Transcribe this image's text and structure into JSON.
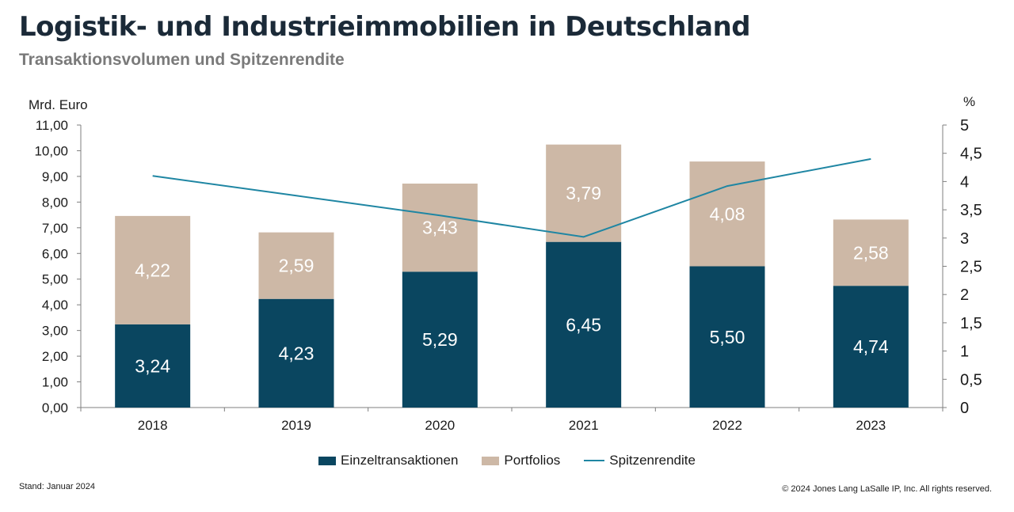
{
  "title": "Logistik- und Industrieimmobilien in Deutschland",
  "subtitle": "Transaktionsvolumen und Spitzenrendite",
  "footer": {
    "stand": "Stand: Januar 2024",
    "copyright": "© 2024 Jones Lang LaSalle IP, Inc. All rights reserved."
  },
  "colors": {
    "einzel": "#0a4660",
    "portfolio": "#cdb8a6",
    "line": "#1f86a3",
    "axis": "#7f7f7f"
  },
  "chart_data": {
    "type": "bar",
    "stacked": true,
    "categories": [
      "2018",
      "2019",
      "2020",
      "2021",
      "2022",
      "2023"
    ],
    "ylabel": "Mrd. Euro",
    "y2label": "%",
    "ylim": [
      0,
      11
    ],
    "y2lim": [
      0,
      5
    ],
    "yticks": [
      "0,00",
      "1,00",
      "2,00",
      "3,00",
      "4,00",
      "5,00",
      "6,00",
      "7,00",
      "8,00",
      "9,00",
      "10,00",
      "11,00"
    ],
    "y2ticks": [
      "0",
      "0,5",
      "1",
      "1,5",
      "2",
      "2,5",
      "3",
      "3,5",
      "4",
      "4,5",
      "5"
    ],
    "series": [
      {
        "name": "Einzeltransaktionen",
        "type": "bar",
        "axis": "left",
        "values": [
          3.24,
          4.23,
          5.29,
          6.45,
          5.5,
          4.74
        ],
        "labels": [
          "3,24",
          "4,23",
          "5,29",
          "6,45",
          "5,50",
          "4,74"
        ]
      },
      {
        "name": "Portfolios",
        "type": "bar",
        "axis": "left",
        "values": [
          4.22,
          2.59,
          3.43,
          3.79,
          4.08,
          2.58
        ],
        "labels": [
          "4,22",
          "2,59",
          "3,43",
          "3,79",
          "4,08",
          "2,58"
        ]
      },
      {
        "name": "Spitzenrendite",
        "type": "line",
        "axis": "right",
        "values": [
          4.1,
          3.75,
          3.4,
          3.02,
          3.92,
          4.4
        ]
      }
    ],
    "legend_position": "bottom",
    "grid": false
  }
}
